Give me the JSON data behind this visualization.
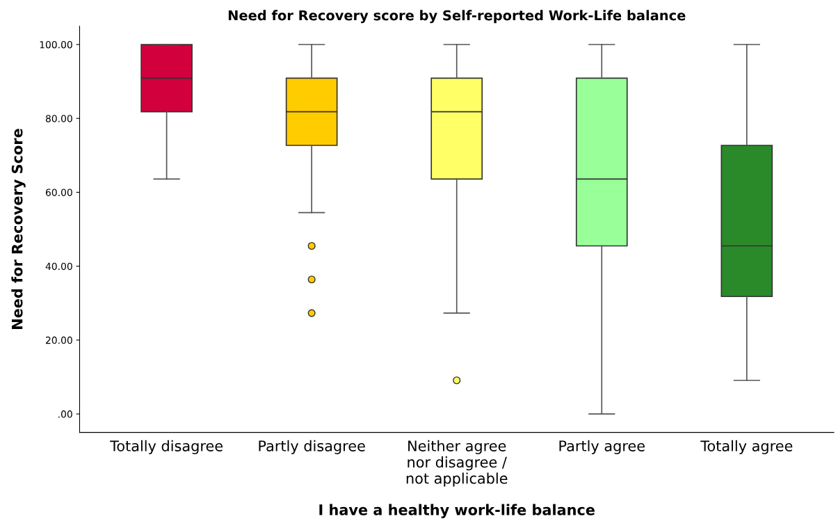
{
  "chart_data": {
    "type": "box",
    "title": "Need for Recovery score by Self-reported Work-Life balance",
    "xlabel": "I have a healthy work-life balance",
    "ylabel": "Need for Recovery Score",
    "categories": [
      "Totally disagree",
      "Partly disagree",
      "Neither agree\nnor disagree /\nnot applicable",
      "Partly agree",
      "Totally agree"
    ],
    "colors": [
      "#d2003c",
      "#ffcc00",
      "#ffff66",
      "#99ff99",
      "#2a8a2a"
    ],
    "boxes": [
      {
        "low": 63.6,
        "q1": 81.8,
        "median": 90.9,
        "q3": 100,
        "high": 100
      },
      {
        "low": 54.5,
        "q1": 72.7,
        "median": 81.8,
        "q3": 90.9,
        "high": 100,
        "outliers": [
          45.5,
          36.4,
          27.3
        ]
      },
      {
        "low": 27.3,
        "q1": 63.6,
        "median": 81.8,
        "q3": 90.9,
        "high": 100,
        "outliers": [
          9.1
        ]
      },
      {
        "low": 0,
        "q1": 45.5,
        "median": 63.6,
        "q3": 90.9,
        "high": 100
      },
      {
        "low": 9.1,
        "q1": 31.8,
        "median": 45.5,
        "q3": 72.7,
        "high": 100
      }
    ],
    "ylim": [
      -5,
      105
    ],
    "yticks": [
      {
        "value": 0,
        "label": ".00"
      },
      {
        "value": 20,
        "label": "20.00"
      },
      {
        "value": 40,
        "label": "40.00"
      },
      {
        "value": 60,
        "label": "60.00"
      },
      {
        "value": 80,
        "label": "80.00"
      },
      {
        "value": 100,
        "label": "100.00"
      }
    ],
    "grid": false,
    "legend": false
  }
}
